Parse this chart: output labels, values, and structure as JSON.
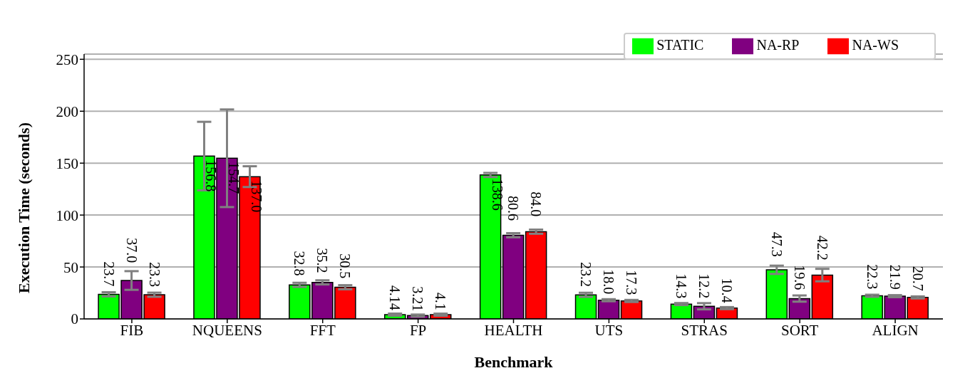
{
  "chart_data": {
    "type": "bar",
    "categories": [
      "FIB",
      "NQUEENS",
      "FFT",
      "FP",
      "HEALTH",
      "UTS",
      "STRAS",
      "SORT",
      "ALIGN"
    ],
    "series": [
      {
        "name": "STATIC",
        "color": "#00ff00",
        "values": [
          23.7,
          156.8,
          32.8,
          4.14,
          138.6,
          23.2,
          14.3,
          47.3,
          22.3
        ],
        "value_labels": [
          "23.7",
          "156.8",
          "32.8",
          "4.14",
          "138.6",
          "23.2",
          "14.3",
          "47.3",
          "22.3"
        ],
        "errors": [
          2,
          33,
          2,
          1,
          2,
          2,
          1,
          4,
          1
        ]
      },
      {
        "name": "NA-RP",
        "color": "#800080",
        "values": [
          37.0,
          154.7,
          35.2,
          3.21,
          80.6,
          18.0,
          12.2,
          19.6,
          21.9
        ],
        "value_labels": [
          "37.0",
          "154.7",
          "35.2",
          "3.21",
          "80.6",
          "18.0",
          "12.2",
          "19.6",
          "21.9"
        ],
        "errors": [
          9,
          47,
          2,
          1,
          2,
          1,
          3,
          3,
          1
        ]
      },
      {
        "name": "NA-WS",
        "color": "#ff0000",
        "values": [
          23.3,
          137.0,
          30.5,
          4.1,
          84.0,
          17.3,
          10.4,
          42.2,
          20.7
        ],
        "value_labels": [
          "23.3",
          "137.0",
          "30.5",
          "4.1",
          "84.0",
          "17.3",
          "10.4",
          "42.2",
          "20.7"
        ],
        "errors": [
          2,
          10,
          2,
          1,
          2,
          1,
          1,
          6,
          1
        ]
      }
    ],
    "xlabel": "Benchmark",
    "ylabel": "Execution Time (seconds)",
    "ylim": [
      0,
      255
    ],
    "yticks": [
      0,
      50,
      100,
      150,
      200,
      250
    ],
    "grid": "y",
    "legend": "top right"
  }
}
